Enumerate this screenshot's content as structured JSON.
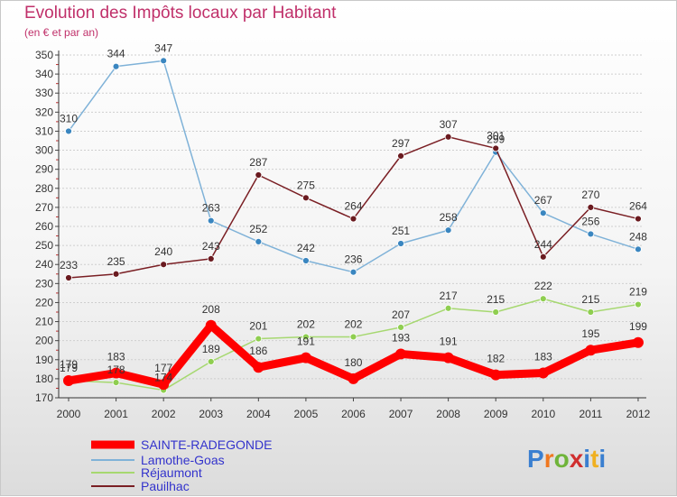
{
  "chart_data": {
    "type": "line",
    "title": "Evolution des Impôts locaux par Habitant",
    "subtitle": "(en € et par an)",
    "xlabel": "",
    "ylabel": "",
    "ylim": [
      170,
      350
    ],
    "ytick_step": 10,
    "grid": "horizontal",
    "legend_position": "bottom-left",
    "x": [
      "2000",
      "2001",
      "2002",
      "2003",
      "2004",
      "2005",
      "2006",
      "2007",
      "2008",
      "2009",
      "2010",
      "2011",
      "2012"
    ],
    "series": [
      {
        "name": "SAINTE-RADEGONDE",
        "color": "#ff0000",
        "marker": "#ff0000",
        "values": [
          179,
          183,
          177,
          208,
          186,
          191,
          180,
          193,
          191,
          182,
          183,
          195,
          199
        ]
      },
      {
        "name": "Lamothe-Goas",
        "color": "#7fb2d8",
        "marker": "#3a86c0",
        "values": [
          310,
          344,
          347,
          263,
          252,
          242,
          236,
          251,
          258,
          299,
          267,
          256,
          248
        ]
      },
      {
        "name": "Réjaumont",
        "color": "#a6d870",
        "marker": "#8fce50",
        "values": [
          179,
          178,
          174,
          189,
          201,
          202,
          202,
          207,
          217,
          215,
          222,
          215,
          219
        ]
      },
      {
        "name": "Pauilhac",
        "color": "#7a1f24",
        "marker": "#6a1a1f",
        "values": [
          233,
          235,
          240,
          243,
          287,
          275,
          264,
          297,
          307,
          301,
          244,
          270,
          264
        ]
      }
    ]
  },
  "logo": {
    "text": "Proxiti",
    "letter_colors": [
      "#3a7fd0",
      "#f07820",
      "#6fb43a",
      "#d02f2f",
      "#3a7fd0",
      "#f0b020",
      "#3a7fd0"
    ]
  }
}
